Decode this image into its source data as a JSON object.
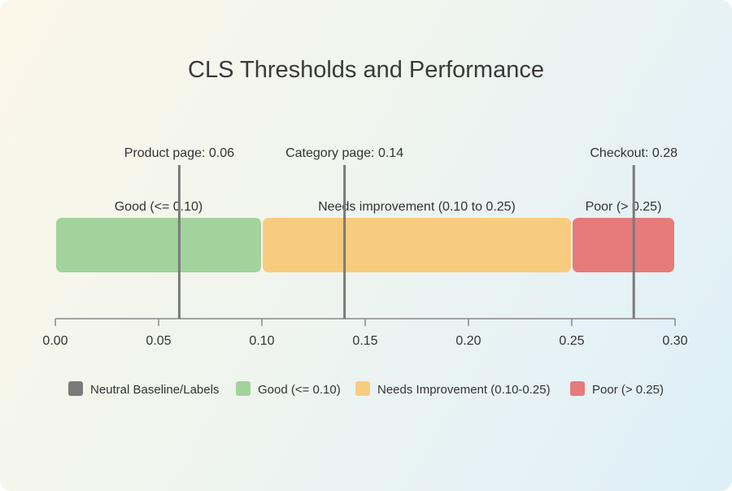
{
  "chart_data": {
    "type": "bar",
    "title": "CLS Thresholds and Performance",
    "xlim": [
      0,
      0.3
    ],
    "ticks": [
      "0.00",
      "0.05",
      "0.10",
      "0.15",
      "0.20",
      "0.25",
      "0.30"
    ],
    "tick_values": [
      0,
      0.05,
      0.1,
      0.15,
      0.2,
      0.25,
      0.3
    ],
    "grid": false,
    "legend_placement": "bottom",
    "bands": [
      {
        "label": "Good (<= 0.10)",
        "start": 0,
        "end": 0.1,
        "color": "#a3d39c"
      },
      {
        "label": "Needs improvement (0.10 to 0.25)",
        "start": 0.1,
        "end": 0.25,
        "color": "#f7cc7f"
      },
      {
        "label": "Poor (> 0.25)",
        "start": 0.25,
        "end": 0.3,
        "color": "#e57b7b"
      }
    ],
    "markers": [
      {
        "label": "Product page: 0.06",
        "value": 0.06
      },
      {
        "label": "Category page: 0.14",
        "value": 0.14
      },
      {
        "label": "Checkout: 0.28",
        "value": 0.28
      }
    ],
    "legend": [
      {
        "label": "Neutral Baseline/Labels",
        "color": "#7a7a7a"
      },
      {
        "label": "Good (<= 0.10)",
        "color": "#a3d39c"
      },
      {
        "label": "Needs Improvement (0.10-0.25)",
        "color": "#f7cc7f"
      },
      {
        "label": "Poor (> 0.25)",
        "color": "#e57b7b"
      }
    ],
    "neutral_color": "#7a7a7a"
  }
}
